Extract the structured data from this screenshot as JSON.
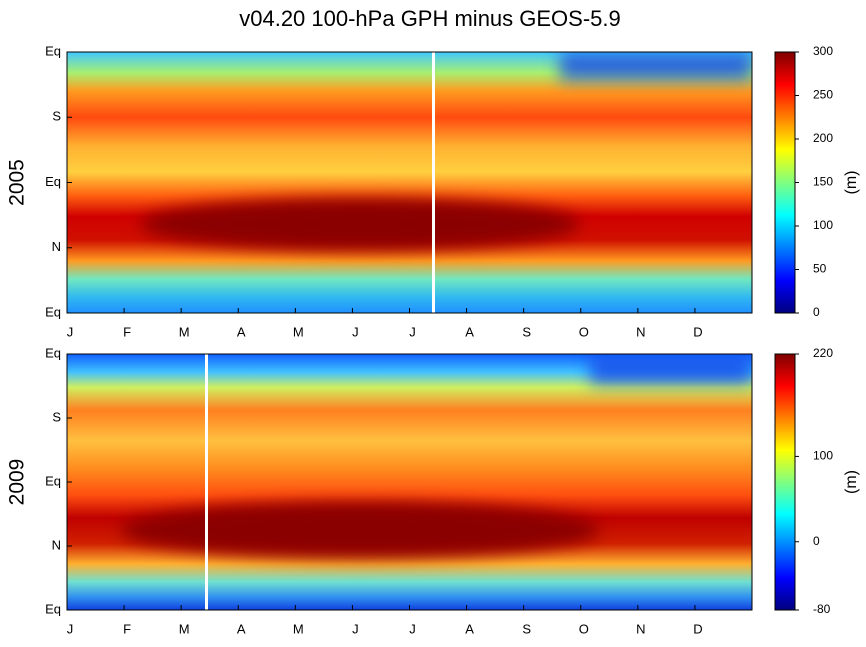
{
  "title": "v04.20 100-hPa GPH minus GEOS-5.9",
  "chart_data": [
    {
      "type": "heatmap",
      "ylabel": "2005",
      "categories": [
        "J",
        "F",
        "M",
        "A",
        "M",
        "J",
        "J",
        "A",
        "S",
        "O",
        "N",
        "D"
      ],
      "rows": [
        "Eq",
        "S",
        "Eq",
        "N",
        "Eq"
      ],
      "colorbar_label": "(m)",
      "clim": [
        0,
        300
      ],
      "cticks": [
        0,
        50,
        100,
        150,
        200,
        250,
        300
      ]
    },
    {
      "type": "heatmap",
      "ylabel": "2009",
      "categories": [
        "J",
        "F",
        "M",
        "A",
        "M",
        "J",
        "J",
        "A",
        "S",
        "O",
        "N",
        "D"
      ],
      "rows": [
        "Eq",
        "S",
        "Eq",
        "N",
        "Eq"
      ],
      "colorbar_label": "(m)",
      "clim": [
        -80,
        220
      ],
      "cticks": [
        -80,
        0,
        100,
        220
      ]
    }
  ]
}
